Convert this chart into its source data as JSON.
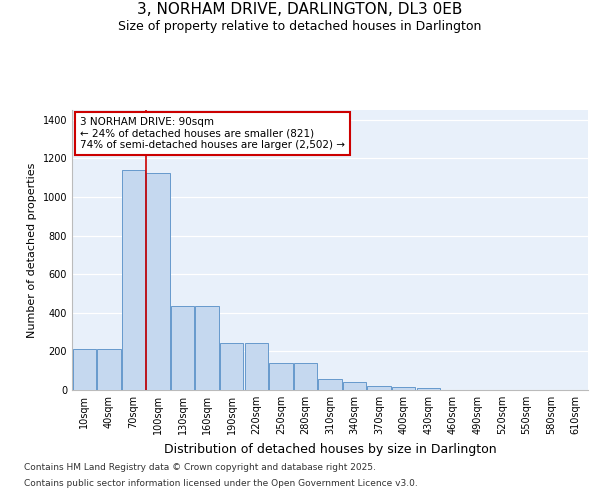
{
  "title": "3, NORHAM DRIVE, DARLINGTON, DL3 0EB",
  "subtitle": "Size of property relative to detached houses in Darlington",
  "xlabel": "Distribution of detached houses by size in Darlington",
  "ylabel": "Number of detached properties",
  "categories": [
    "10sqm",
    "40sqm",
    "70sqm",
    "100sqm",
    "130sqm",
    "160sqm",
    "190sqm",
    "220sqm",
    "250sqm",
    "280sqm",
    "310sqm",
    "340sqm",
    "370sqm",
    "400sqm",
    "430sqm",
    "460sqm",
    "490sqm",
    "520sqm",
    "550sqm",
    "580sqm",
    "610sqm"
  ],
  "values": [
    210,
    210,
    1140,
    1125,
    435,
    435,
    245,
    243,
    140,
    140,
    58,
    42,
    20,
    15,
    12,
    0,
    0,
    0,
    0,
    0,
    0
  ],
  "bar_color": "#c5d8ef",
  "bar_edge_color": "#6699cc",
  "vline_x": 2.5,
  "vline_color": "#cc0000",
  "annotation_text": "3 NORHAM DRIVE: 90sqm\n← 24% of detached houses are smaller (821)\n74% of semi-detached houses are larger (2,502) →",
  "annotation_box_facecolor": "#ffffff",
  "annotation_box_edgecolor": "#cc0000",
  "ylim": [
    0,
    1450
  ],
  "yticks": [
    0,
    200,
    400,
    600,
    800,
    1000,
    1200,
    1400
  ],
  "plot_bg": "#e8f0fa",
  "fig_bg": "#ffffff",
  "grid_color": "#ffffff",
  "footer_line1": "Contains HM Land Registry data © Crown copyright and database right 2025.",
  "footer_line2": "Contains public sector information licensed under the Open Government Licence v3.0.",
  "title_fontsize": 11,
  "subtitle_fontsize": 9,
  "xlabel_fontsize": 9,
  "ylabel_fontsize": 8,
  "tick_fontsize": 7,
  "annot_fontsize": 7.5,
  "footer_fontsize": 6.5
}
